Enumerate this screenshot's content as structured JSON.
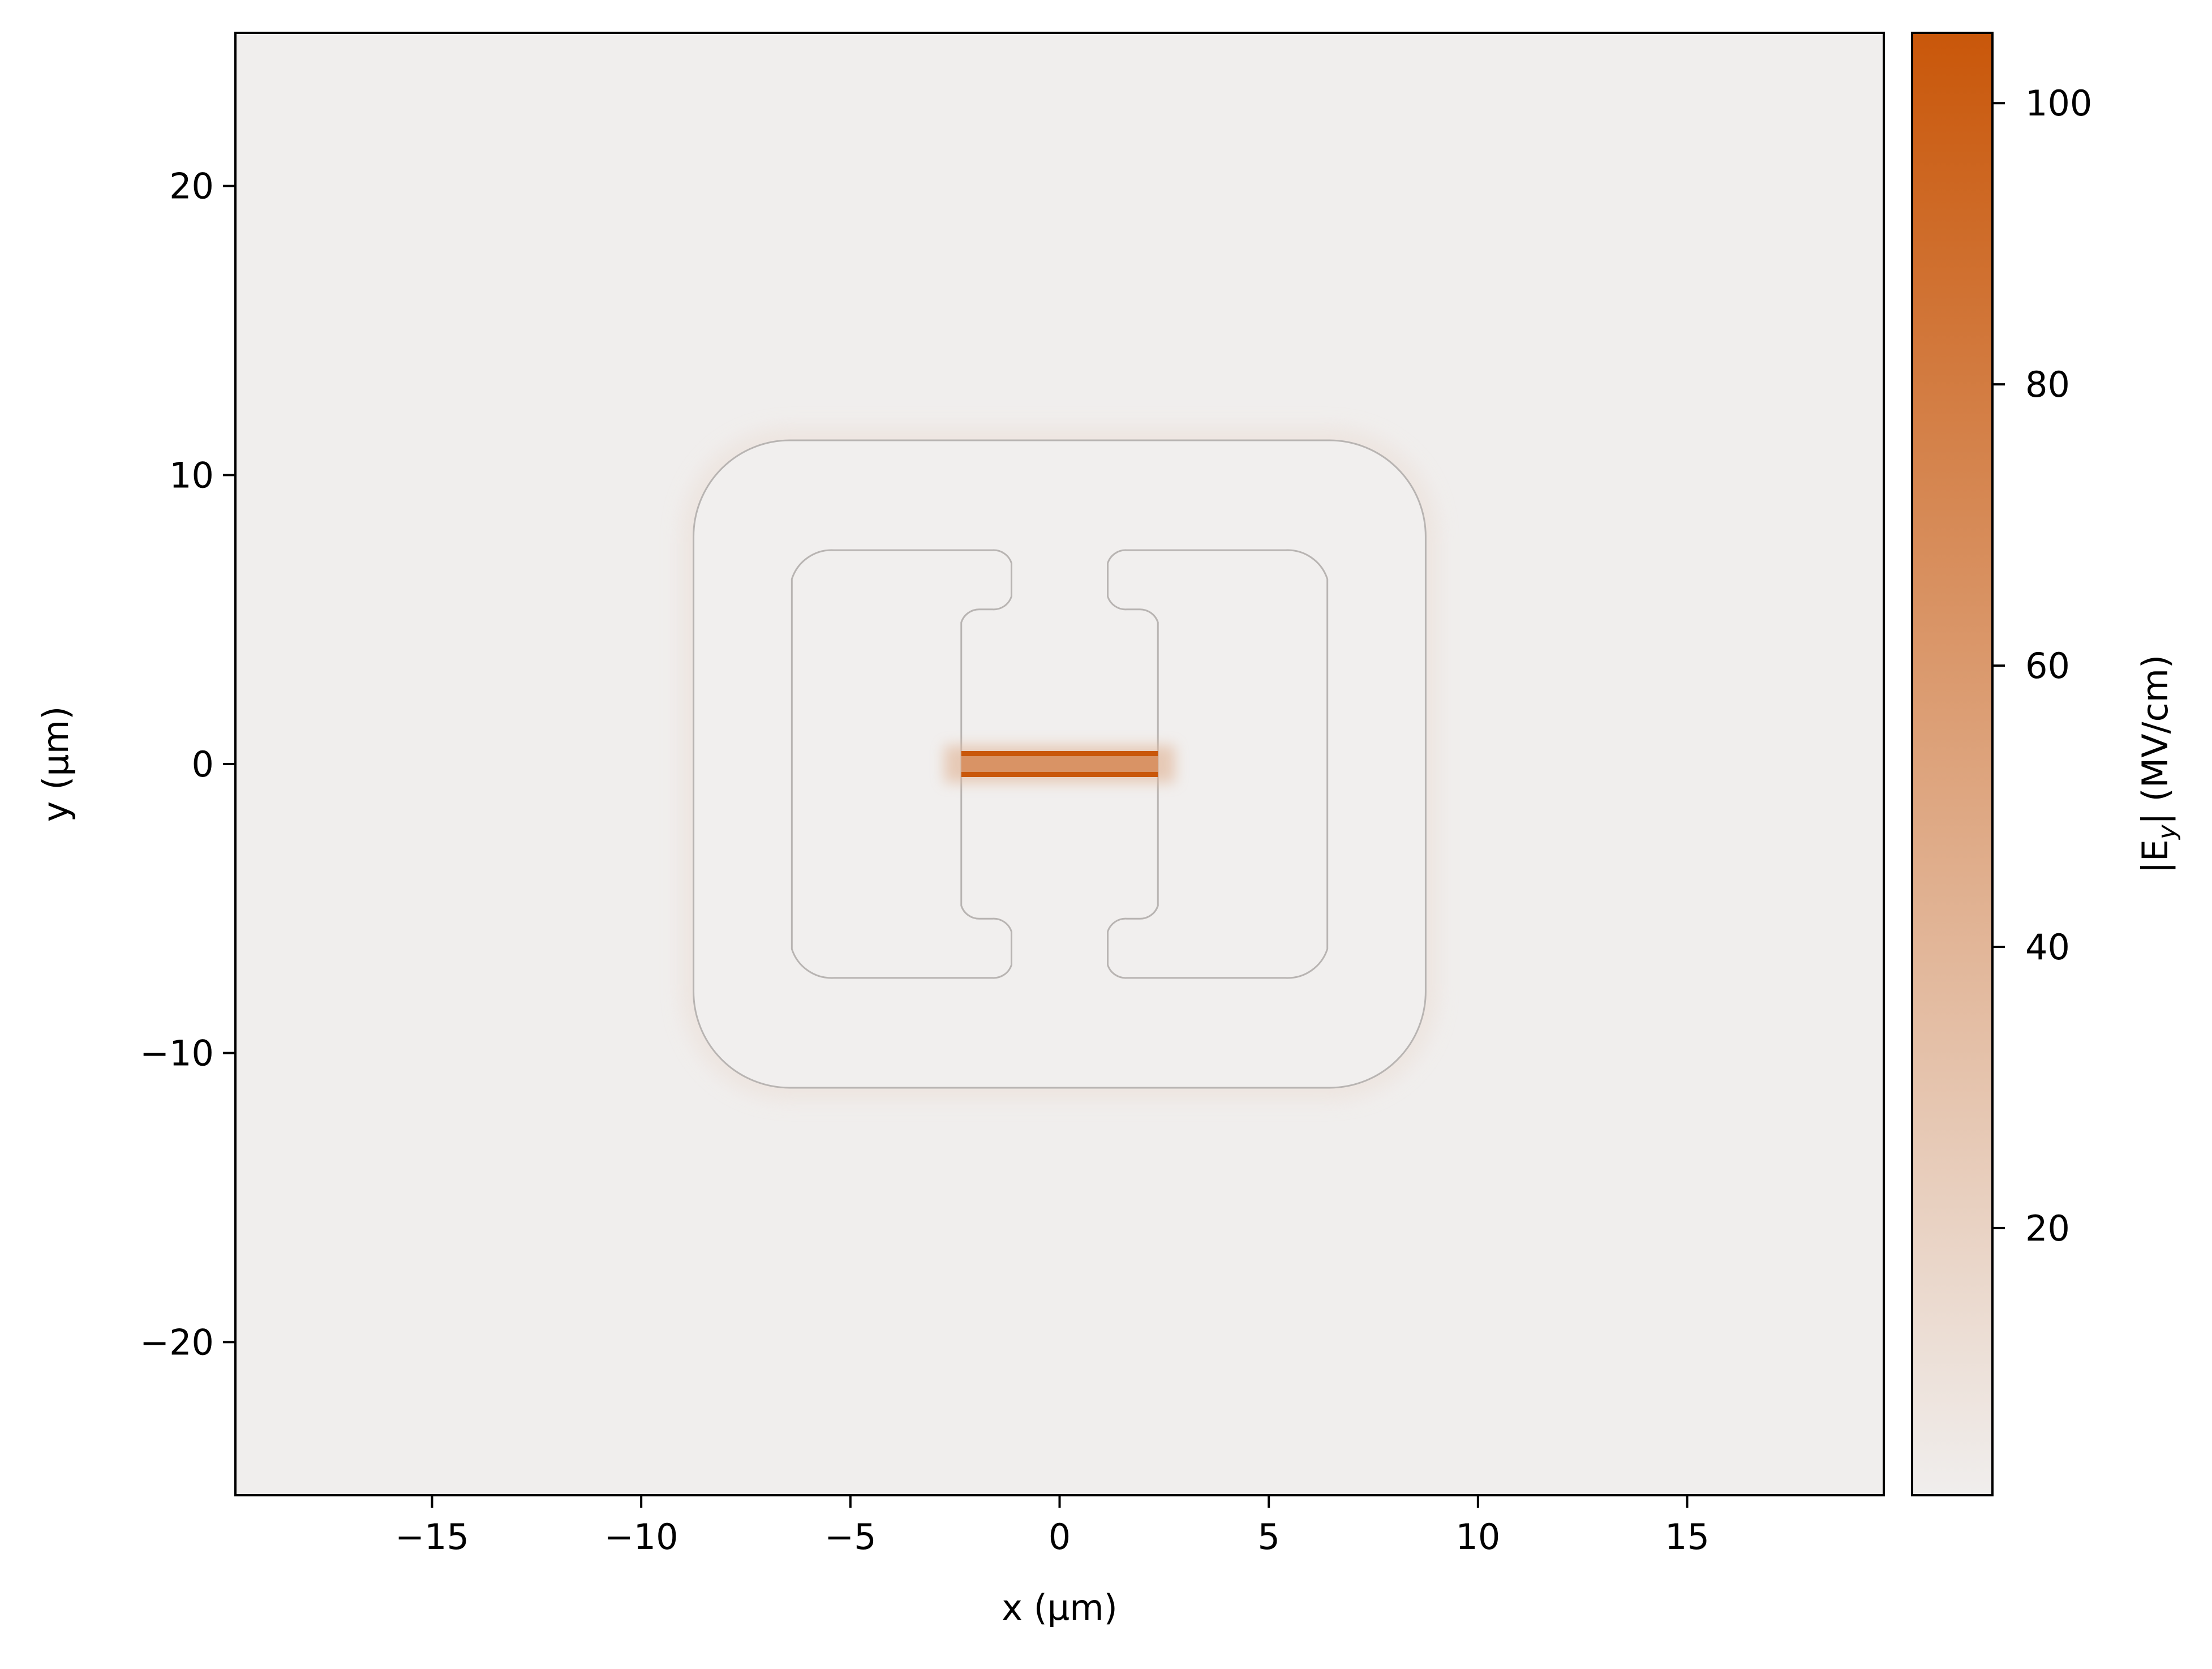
{
  "chart_data": {
    "type": "heatmap",
    "title": "",
    "xlabel": "x (μm)",
    "ylabel": "y (μm)",
    "xlim": [
      -19.7,
      19.7
    ],
    "ylim": [
      -25.3,
      25.3
    ],
    "x_ticks": [
      -15,
      -10,
      -5,
      0,
      5,
      10,
      15
    ],
    "x_tick_labels": [
      "−15",
      "−10",
      "−5",
      "0",
      "5",
      "10",
      "15"
    ],
    "y_ticks": [
      20,
      10,
      0,
      -10,
      -20
    ],
    "y_tick_labels": [
      "20",
      "10",
      "0",
      "−10",
      "−20"
    ],
    "grid": false,
    "colorbar": {
      "label_prefix": "|E",
      "label_sub": "y",
      "label_suffix": "| (MV/cm)",
      "range": [
        1,
        105
      ],
      "ticks": [
        20,
        40,
        60,
        80,
        100
      ],
      "tick_labels": [
        "20",
        "40",
        "60",
        "80",
        "100"
      ],
      "cmap": [
        "#f0eeed",
        "#c9570a"
      ]
    },
    "background_field": 2,
    "regions": {
      "outer_outline": {
        "xmin": -8.75,
        "xmax": 8.75,
        "ymin": -11.2,
        "ymax": 11.2,
        "corner_radius": 2.3
      },
      "left_cavity": {
        "xmin": -6.4,
        "xmax": -1.15,
        "ymin": -7.4,
        "ymax": 7.4,
        "corner_radius": 1.0
      },
      "right_cavity": {
        "xmin": 1.15,
        "xmax": 6.4,
        "ymin": -7.4,
        "ymax": 7.4,
        "corner_radius": 1.0
      },
      "center_channel": {
        "xmin": -2.35,
        "xmax": 2.35,
        "ymin": -4.2,
        "ymax": 4.2
      },
      "high_field_gap": {
        "xmin": -2.35,
        "xmax": 2.35,
        "ymin": -0.45,
        "ymax": 0.45,
        "field": 105
      }
    }
  }
}
